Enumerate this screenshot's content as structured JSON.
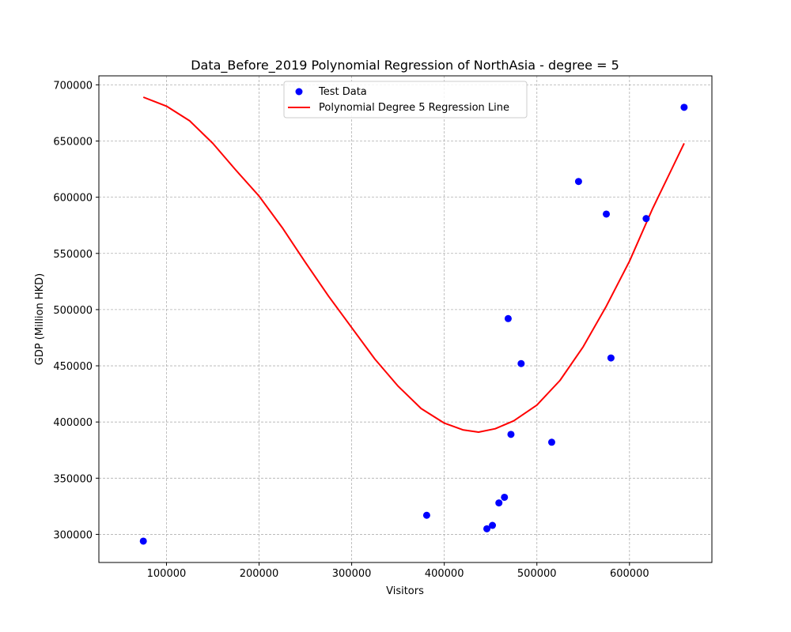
{
  "chart_data": {
    "type": "scatter",
    "title": "Data_Before_2019 Polynomial Regression of NorthAsia - degree = 5",
    "xlabel": "Visitors",
    "ylabel": "GDP (Million HKD)",
    "xlim": [
      27000,
      689000
    ],
    "ylim": [
      275000,
      708000
    ],
    "x_ticks": [
      100000,
      200000,
      300000,
      400000,
      500000,
      600000
    ],
    "y_ticks": [
      300000,
      350000,
      400000,
      450000,
      500000,
      550000,
      600000,
      650000,
      700000
    ],
    "grid": true,
    "legend_position": "upper-center",
    "series": [
      {
        "name": "Test Data",
        "type": "scatter",
        "color": "#0000ff",
        "points": [
          {
            "x": 75000,
            "y": 294000
          },
          {
            "x": 381000,
            "y": 317000
          },
          {
            "x": 446000,
            "y": 305000
          },
          {
            "x": 452000,
            "y": 308000
          },
          {
            "x": 459000,
            "y": 328000
          },
          {
            "x": 465000,
            "y": 333000
          },
          {
            "x": 469000,
            "y": 492000
          },
          {
            "x": 472000,
            "y": 389000
          },
          {
            "x": 483000,
            "y": 452000
          },
          {
            "x": 516000,
            "y": 382000
          },
          {
            "x": 545000,
            "y": 614000
          },
          {
            "x": 575000,
            "y": 585000
          },
          {
            "x": 580000,
            "y": 457000
          },
          {
            "x": 618000,
            "y": 581000
          },
          {
            "x": 659000,
            "y": 680000
          }
        ]
      },
      {
        "name": "Polynomial Degree 5 Regression Line",
        "type": "line",
        "color": "#ff0000",
        "points": [
          {
            "x": 75000,
            "y": 689000
          },
          {
            "x": 100000,
            "y": 681000
          },
          {
            "x": 125000,
            "y": 668000
          },
          {
            "x": 150000,
            "y": 648000
          },
          {
            "x": 175000,
            "y": 624000
          },
          {
            "x": 200000,
            "y": 601000
          },
          {
            "x": 225000,
            "y": 573000
          },
          {
            "x": 250000,
            "y": 542000
          },
          {
            "x": 275000,
            "y": 512000
          },
          {
            "x": 300000,
            "y": 484000
          },
          {
            "x": 325000,
            "y": 456000
          },
          {
            "x": 350000,
            "y": 432000
          },
          {
            "x": 375000,
            "y": 412000
          },
          {
            "x": 400000,
            "y": 399000
          },
          {
            "x": 420000,
            "y": 393000
          },
          {
            "x": 437000,
            "y": 391000
          },
          {
            "x": 455000,
            "y": 394000
          },
          {
            "x": 475000,
            "y": 401000
          },
          {
            "x": 500000,
            "y": 415000
          },
          {
            "x": 525000,
            "y": 437000
          },
          {
            "x": 550000,
            "y": 467000
          },
          {
            "x": 575000,
            "y": 503000
          },
          {
            "x": 600000,
            "y": 543000
          },
          {
            "x": 625000,
            "y": 590000
          },
          {
            "x": 645000,
            "y": 624000
          },
          {
            "x": 659000,
            "y": 648000
          }
        ]
      }
    ]
  }
}
